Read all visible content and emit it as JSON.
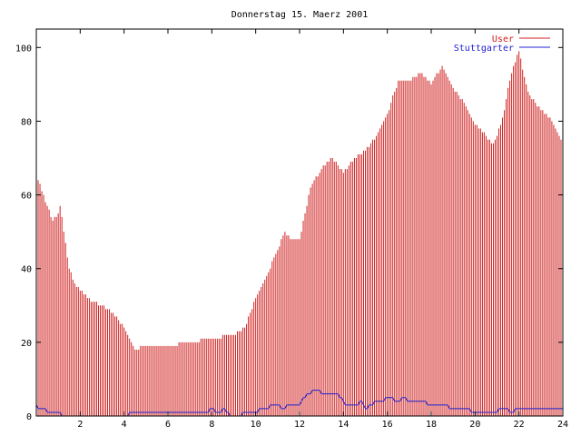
{
  "colors": {
    "user": "#d02020",
    "stuttgarter": "#2020d0",
    "axis": "#000000"
  },
  "chart_data": {
    "type": "bar",
    "title": "Donnerstag 15. Maerz 2001",
    "xlabel": "",
    "ylabel": "",
    "xlim": [
      0,
      24
    ],
    "ylim": [
      0,
      105
    ],
    "xticks": [
      2,
      4,
      6,
      8,
      10,
      12,
      14,
      16,
      18,
      20,
      22,
      24
    ],
    "yticks": [
      0,
      20,
      40,
      60,
      80,
      100
    ],
    "xtick_labels": [
      "2",
      "4",
      "6",
      "8",
      "10",
      "12",
      "14",
      "16",
      "18",
      "20",
      "22",
      "24"
    ],
    "ytick_labels": [
      "0",
      "20",
      "40",
      "60",
      "80",
      "100"
    ],
    "grid": false,
    "legend_position": "top-right",
    "interval_minutes": 5,
    "series": [
      {
        "name": "User",
        "style": "impulses",
        "anchors": [
          [
            0,
            65
          ],
          [
            0.2,
            62
          ],
          [
            0.5,
            57
          ],
          [
            0.75,
            53
          ],
          [
            1,
            55
          ],
          [
            1.1,
            58
          ],
          [
            1.25,
            50
          ],
          [
            1.5,
            40
          ],
          [
            1.75,
            36
          ],
          [
            2,
            34
          ],
          [
            2.25,
            33
          ],
          [
            2.5,
            31
          ],
          [
            3,
            30
          ],
          [
            3.5,
            28
          ],
          [
            4,
            24
          ],
          [
            4.5,
            18
          ],
          [
            5,
            19
          ],
          [
            6,
            19
          ],
          [
            7,
            20
          ],
          [
            8,
            21
          ],
          [
            9,
            22
          ],
          [
            9.5,
            24
          ],
          [
            10,
            32
          ],
          [
            10.5,
            38
          ],
          [
            11,
            45
          ],
          [
            11.3,
            50
          ],
          [
            11.6,
            48
          ],
          [
            12,
            48
          ],
          [
            12.5,
            62
          ],
          [
            13,
            67
          ],
          [
            13.5,
            70
          ],
          [
            14,
            66
          ],
          [
            14.5,
            70
          ],
          [
            15,
            72
          ],
          [
            15.5,
            76
          ],
          [
            16,
            82
          ],
          [
            16.5,
            91
          ],
          [
            17,
            91
          ],
          [
            17.5,
            93
          ],
          [
            18,
            90
          ],
          [
            18.5,
            95
          ],
          [
            19,
            89
          ],
          [
            19.5,
            85
          ],
          [
            20,
            79
          ],
          [
            20.5,
            76
          ],
          [
            20.8,
            74
          ],
          [
            21,
            76
          ],
          [
            21.3,
            82
          ],
          [
            21.6,
            92
          ],
          [
            22,
            99
          ],
          [
            22.3,
            90
          ],
          [
            22.6,
            86
          ],
          [
            23,
            83
          ],
          [
            23.5,
            80
          ],
          [
            24,
            74
          ]
        ]
      },
      {
        "name": "Stuttgarter",
        "style": "steps",
        "anchors": [
          [
            0,
            3
          ],
          [
            0.1,
            2
          ],
          [
            0.8,
            1
          ],
          [
            1.5,
            0
          ],
          [
            7,
            1
          ],
          [
            7.8,
            1
          ],
          [
            8,
            2
          ],
          [
            8.3,
            1
          ],
          [
            8.6,
            2
          ],
          [
            8.8,
            0
          ],
          [
            9.9,
            1
          ],
          [
            10.4,
            2
          ],
          [
            10.8,
            3
          ],
          [
            11,
            3
          ],
          [
            11.2,
            2
          ],
          [
            11.6,
            3
          ],
          [
            12,
            3
          ],
          [
            12.2,
            5
          ],
          [
            12.4,
            6
          ],
          [
            12.7,
            7
          ],
          [
            13.2,
            6
          ],
          [
            13.6,
            6
          ],
          [
            13.9,
            5
          ],
          [
            14.1,
            3
          ],
          [
            14.6,
            3
          ],
          [
            14.8,
            4
          ],
          [
            15,
            2
          ],
          [
            15.2,
            3
          ],
          [
            15.5,
            4
          ],
          [
            15.8,
            4
          ],
          [
            16,
            5
          ],
          [
            16.5,
            4
          ],
          [
            16.8,
            5
          ],
          [
            17,
            4
          ],
          [
            17.5,
            4
          ],
          [
            18,
            3
          ],
          [
            18.5,
            3
          ],
          [
            19,
            2
          ],
          [
            19.5,
            2
          ],
          [
            20,
            1
          ],
          [
            20.5,
            1
          ],
          [
            21,
            1
          ],
          [
            21.1,
            2
          ],
          [
            21.5,
            2
          ],
          [
            21.6,
            1
          ],
          [
            22,
            2
          ],
          [
            24,
            2
          ]
        ]
      }
    ]
  }
}
